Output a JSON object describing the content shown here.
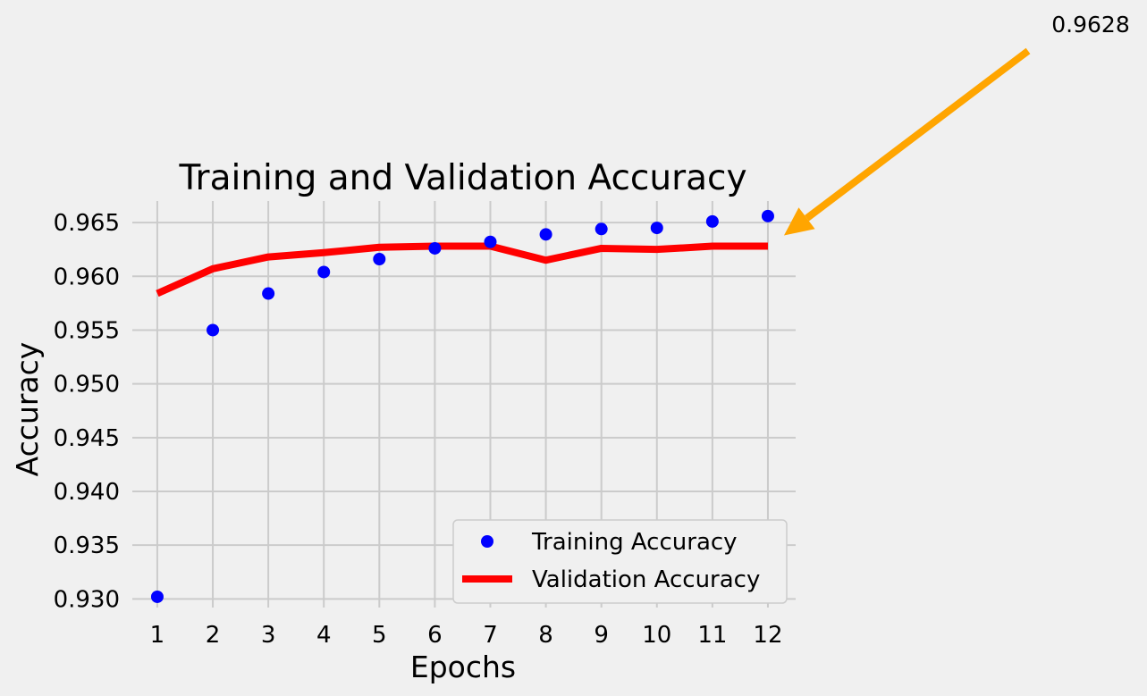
{
  "chart_data": {
    "type": "line",
    "title": "Training and Validation Accuracy",
    "xlabel": "Epochs",
    "ylabel": "Accuracy",
    "categories": [
      1,
      2,
      3,
      4,
      5,
      6,
      7,
      8,
      9,
      10,
      11,
      12
    ],
    "x_tick_labels": [
      "1",
      "2",
      "3",
      "4",
      "5",
      "6",
      "7",
      "8",
      "9",
      "10",
      "11",
      "12"
    ],
    "y_tick_labels": [
      "0.930",
      "0.935",
      "0.940",
      "0.945",
      "0.950",
      "0.955",
      "0.960",
      "0.965"
    ],
    "y_ticks": [
      0.93,
      0.935,
      0.94,
      0.945,
      0.95,
      0.955,
      0.96,
      0.965
    ],
    "xlim": [
      0.55,
      12.5
    ],
    "ylim": [
      0.9292,
      0.967
    ],
    "grid": true,
    "legend_position": "lower-right",
    "series": [
      {
        "name": "Training Accuracy",
        "style": "markers",
        "color": "#0000ff",
        "values": [
          0.9302,
          0.955,
          0.9584,
          0.9604,
          0.9616,
          0.9626,
          0.9632,
          0.9639,
          0.9644,
          0.9645,
          0.9651,
          0.9656
        ]
      },
      {
        "name": "Validation Accuracy",
        "style": "line",
        "color": "#ff0000",
        "values": [
          0.9584,
          0.9607,
          0.9618,
          0.9622,
          0.9627,
          0.9628,
          0.9628,
          0.9615,
          0.9626,
          0.9625,
          0.9628,
          0.9628
        ]
      }
    ],
    "annotation": {
      "text": "0.9628",
      "x": 12,
      "y": 0.9628,
      "arrow_color": "#ffa500"
    }
  }
}
